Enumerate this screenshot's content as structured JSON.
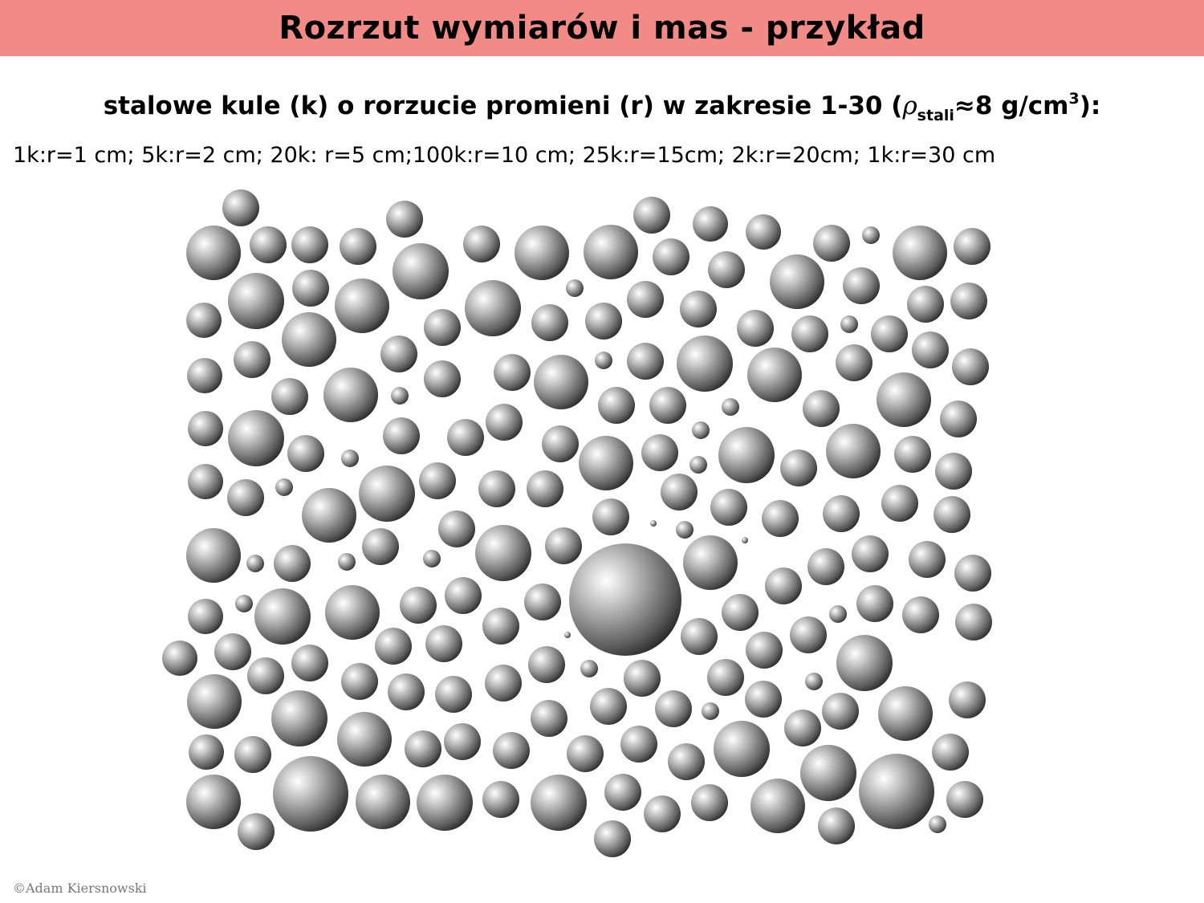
{
  "slide": {
    "title": "Rozrzut wymiarów i mas - przykład",
    "subtitle": {
      "text_before": "stalowe kule (k) o rorzucie promieni (r) w zakresie 1-30 (",
      "rho": "ρ",
      "rho_subscript": "stali",
      "approx": "≈",
      "value": "8 g/cm",
      "superscript": "3",
      "text_after": "):"
    },
    "detail": "1k:r=1 cm; 5k:r=2 cm; 20k: r=5 cm;100k:r=10 cm; 25k:r=15cm; 2k:r=20cm; 1k:r=30 cm",
    "footer": "©Adam Kiersnowski"
  },
  "colors": {
    "title_bar": "#f28b87",
    "ball_highlight": "#ffffff",
    "ball_shadow": "#000000"
  }
}
